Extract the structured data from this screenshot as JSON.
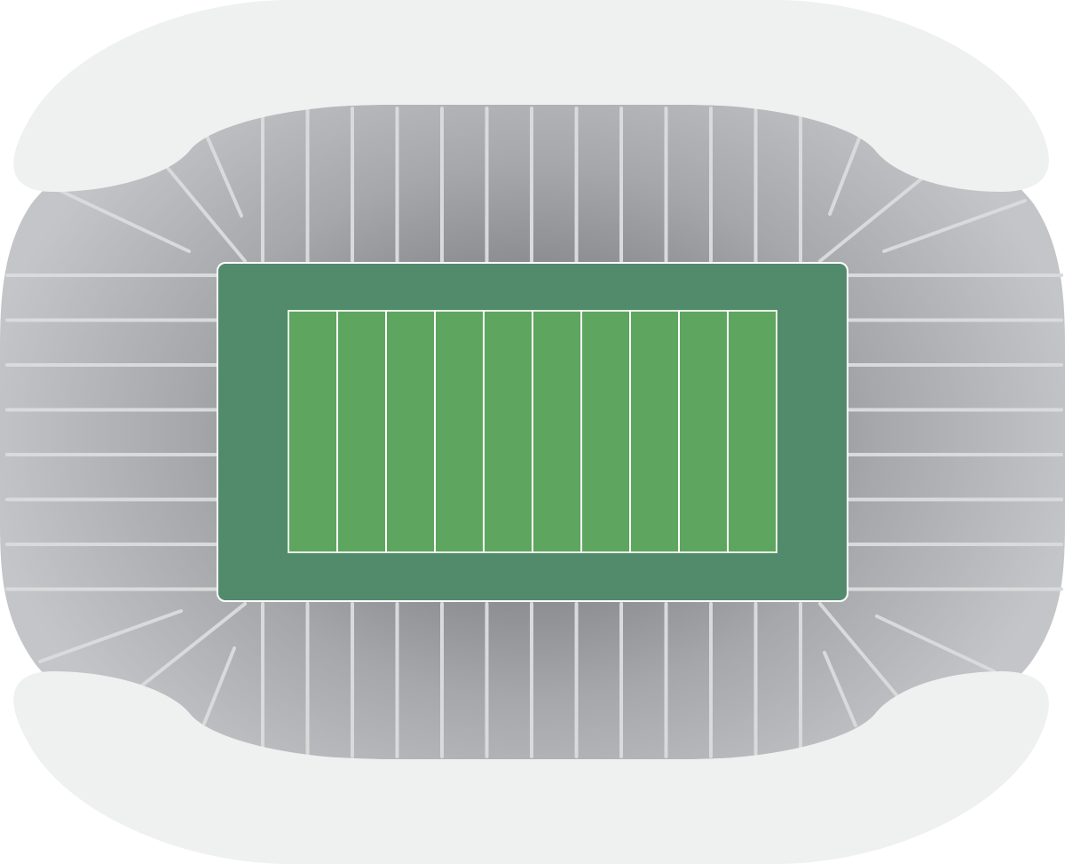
{
  "stadium": {
    "type": "football-stadium-seating-map",
    "colors": {
      "background": "#ffffff",
      "roof": "#eff1f0",
      "seating_light": "#c4c5c8",
      "seating_dark": "#88898d",
      "aisle_lines": "#d9dadb",
      "field_surround": "#528b6c",
      "playing_field": "#5ea560",
      "yard_lines": "#ffffff"
    },
    "field": {
      "yard_line_segments": 10
    },
    "seating": {
      "sections_top": 13,
      "sections_bottom": 13,
      "sections_side_each": 8
    }
  }
}
